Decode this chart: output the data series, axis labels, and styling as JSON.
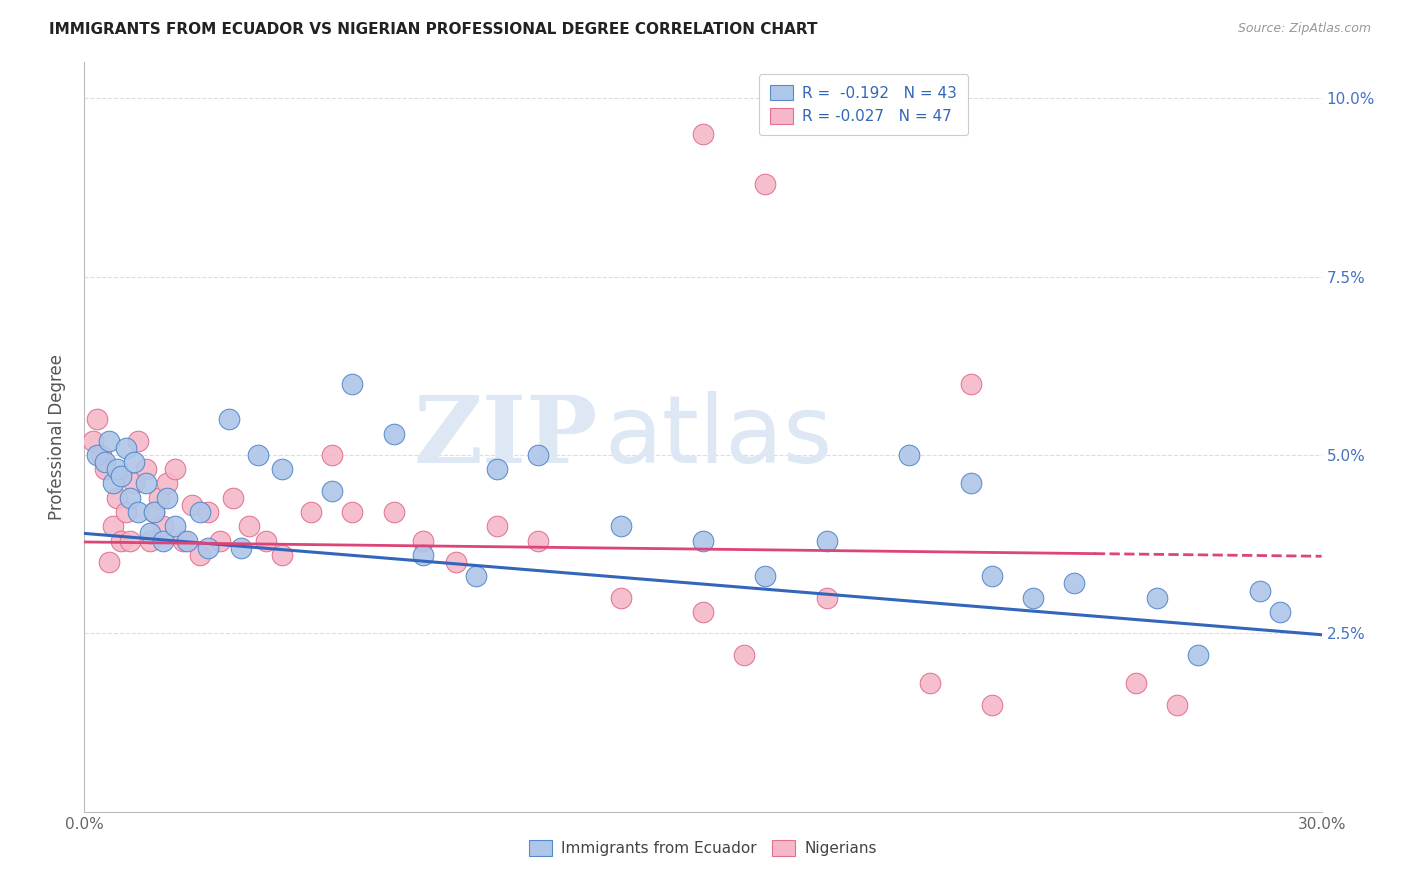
{
  "title": "IMMIGRANTS FROM ECUADOR VS NIGERIAN PROFESSIONAL DEGREE CORRELATION CHART",
  "source": "Source: ZipAtlas.com",
  "ylabel": "Professional Degree",
  "x_min": 0.0,
  "x_max": 0.3,
  "y_min": 0.0,
  "y_max": 0.105,
  "x_ticks": [
    0.0,
    0.05,
    0.1,
    0.15,
    0.2,
    0.25,
    0.3
  ],
  "x_tick_labels": [
    "0.0%",
    "",
    "",
    "",
    "",
    "",
    "30.0%"
  ],
  "y_ticks": [
    0.025,
    0.05,
    0.075,
    0.1
  ],
  "y_tick_labels": [
    "2.5%",
    "5.0%",
    "7.5%",
    "10.0%"
  ],
  "legend_labels": [
    "Immigrants from Ecuador",
    "Nigerians"
  ],
  "legend_r_blue": "R =  -0.192",
  "legend_n_blue": "N = 43",
  "legend_r_pink": "R = -0.027",
  "legend_n_pink": "N = 47",
  "blue_color": "#aec6e8",
  "pink_color": "#f4b8c8",
  "blue_edge_color": "#5588cc",
  "pink_edge_color": "#e07090",
  "blue_line_color": "#3366bb",
  "pink_line_color": "#dd4477",
  "watermark_zip": "ZIP",
  "watermark_atlas": "atlas",
  "blue_scatter_x": [
    0.003,
    0.005,
    0.006,
    0.007,
    0.008,
    0.009,
    0.01,
    0.011,
    0.012,
    0.013,
    0.015,
    0.016,
    0.017,
    0.019,
    0.02,
    0.022,
    0.025,
    0.028,
    0.03,
    0.035,
    0.038,
    0.042,
    0.048,
    0.06,
    0.065,
    0.075,
    0.082,
    0.095,
    0.1,
    0.11,
    0.13,
    0.15,
    0.165,
    0.18,
    0.2,
    0.215,
    0.22,
    0.23,
    0.24,
    0.26,
    0.27,
    0.285,
    0.29
  ],
  "blue_scatter_y": [
    0.05,
    0.049,
    0.052,
    0.046,
    0.048,
    0.047,
    0.051,
    0.044,
    0.049,
    0.042,
    0.046,
    0.039,
    0.042,
    0.038,
    0.044,
    0.04,
    0.038,
    0.042,
    0.037,
    0.055,
    0.037,
    0.05,
    0.048,
    0.045,
    0.06,
    0.053,
    0.036,
    0.033,
    0.048,
    0.05,
    0.04,
    0.038,
    0.033,
    0.038,
    0.05,
    0.046,
    0.033,
    0.03,
    0.032,
    0.03,
    0.022,
    0.031,
    0.028
  ],
  "pink_scatter_x": [
    0.002,
    0.003,
    0.004,
    0.005,
    0.006,
    0.007,
    0.008,
    0.009,
    0.01,
    0.011,
    0.012,
    0.013,
    0.015,
    0.016,
    0.017,
    0.018,
    0.019,
    0.02,
    0.022,
    0.024,
    0.026,
    0.028,
    0.03,
    0.033,
    0.036,
    0.04,
    0.044,
    0.048,
    0.055,
    0.06,
    0.065,
    0.075,
    0.082,
    0.09,
    0.1,
    0.11,
    0.13,
    0.15,
    0.16,
    0.18,
    0.205,
    0.215,
    0.22,
    0.255,
    0.265,
    0.15,
    0.165
  ],
  "pink_scatter_y": [
    0.052,
    0.055,
    0.05,
    0.048,
    0.035,
    0.04,
    0.044,
    0.038,
    0.042,
    0.038,
    0.046,
    0.052,
    0.048,
    0.038,
    0.042,
    0.044,
    0.04,
    0.046,
    0.048,
    0.038,
    0.043,
    0.036,
    0.042,
    0.038,
    0.044,
    0.04,
    0.038,
    0.036,
    0.042,
    0.05,
    0.042,
    0.042,
    0.038,
    0.035,
    0.04,
    0.038,
    0.03,
    0.028,
    0.022,
    0.03,
    0.018,
    0.06,
    0.015,
    0.018,
    0.015,
    0.095,
    0.088
  ],
  "blue_trendline_x": [
    0.0,
    0.3
  ],
  "blue_trendline_y": [
    0.039,
    0.0248
  ],
  "pink_trendline_x": [
    0.0,
    0.3
  ],
  "pink_trendline_y": [
    0.0378,
    0.0358
  ],
  "pink_trendline_solid_end": 0.245
}
